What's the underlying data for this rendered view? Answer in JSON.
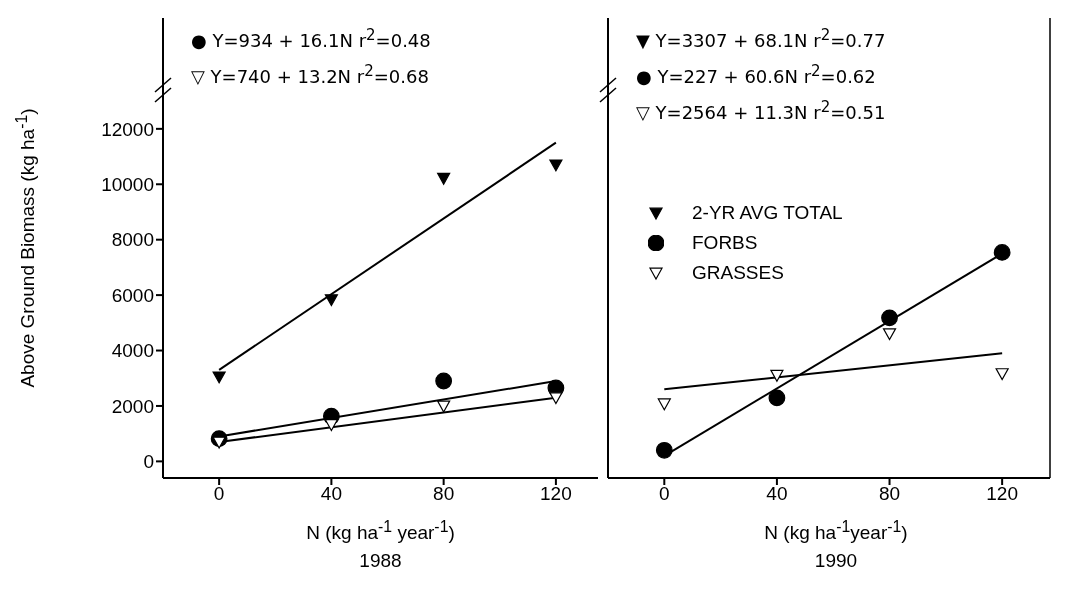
{
  "chart_data": [
    {
      "type": "scatter",
      "title": "1988",
      "xlabel": "N (kg ha$^{-1}$ year$^{-1}$)",
      "ylabel": "Above Ground Biomass (kg ha$^{-1}$)",
      "xlim": [
        -20,
        135
      ],
      "xticks": [
        0,
        40,
        80,
        120
      ],
      "ylim": [
        -600,
        16000
      ],
      "yticks": [
        0,
        2000,
        4000,
        6000,
        8000,
        10000,
        12000
      ],
      "line_style": "solid",
      "annotations": [
        "● Y=934 + 16.1N r$^{2}$=0.48",
        "▽ Y=740 + 13.2N r$^{2}$=0.68"
      ],
      "series": [
        {
          "marker": "circle",
          "color": "#000000",
          "x": [
            0,
            40,
            80,
            120
          ],
          "values": [
            820,
            1630,
            2900,
            2650
          ]
        },
        {
          "marker": "triangle",
          "color": "#ffffff",
          "x": [
            0,
            40,
            80,
            120
          ],
          "values": [
            700,
            1330,
            2000,
            2300
          ]
        },
        {
          "marker": "triangle",
          "color": "#000000",
          "x": [
            0,
            40,
            80,
            120
          ],
          "values": [
            3050,
            5840,
            10220,
            10700
          ]
        },
        {
          "type": "line",
          "marker": "none",
          "color": "#000000",
          "x": [
            0,
            120
          ],
          "values": [
            900,
            2900
          ]
        },
        {
          "type": "line",
          "marker": "none",
          "color": "#000000",
          "x": [
            0,
            120
          ],
          "values": [
            700,
            2300
          ]
        },
        {
          "type": "line",
          "marker": "none",
          "color": "#000000",
          "x": [
            0,
            120
          ],
          "values": [
            3300,
            11500
          ]
        }
      ]
    },
    {
      "type": "scatter",
      "title": "1990",
      "xlabel": "N (kg ha$^{-1}$year$^{-1}$)",
      "xlim": [
        -20,
        137
      ],
      "xticks": [
        0,
        40,
        80,
        120
      ],
      "ylim": [
        -600,
        16000
      ],
      "yticks": [
        0,
        2000,
        4000,
        6000,
        8000,
        10000,
        12000
      ],
      "tick_labels": "x",
      "legend": "top left",
      "line_style": "solid",
      "annotations": [
        "▼ Y=3307 + 68.1N r$^{2}$=0.77",
        "● Y=227 + 60.6N r$^{2}$=0.62",
        "▽ Y=2564 + 11.3N r$^{2}$=0.51"
      ],
      "series": [
        {
          "name": "2-YR AVG TOTAL",
          "marker": "triangle",
          "color": "#000000"
        },
        {
          "name": "FORBS",
          "marker": "circle",
          "color": "#000000",
          "x": [
            0,
            40,
            80,
            120
          ],
          "values": [
            400,
            2290,
            5180,
            7540
          ]
        },
        {
          "name": "GRASSES",
          "marker": "triangle",
          "color": "#ffffff",
          "x": [
            0,
            40,
            80,
            120
          ],
          "values": [
            2080,
            3110,
            4610,
            3170
          ]
        },
        {
          "type": "line",
          "marker": "none",
          "color": "#000000",
          "x": [
            0,
            120
          ],
          "values": [
            200,
            7500
          ]
        },
        {
          "type": "line",
          "marker": "none",
          "color": "#000000",
          "x": [
            0,
            120
          ],
          "values": [
            2600,
            3900
          ]
        }
      ]
    }
  ]
}
